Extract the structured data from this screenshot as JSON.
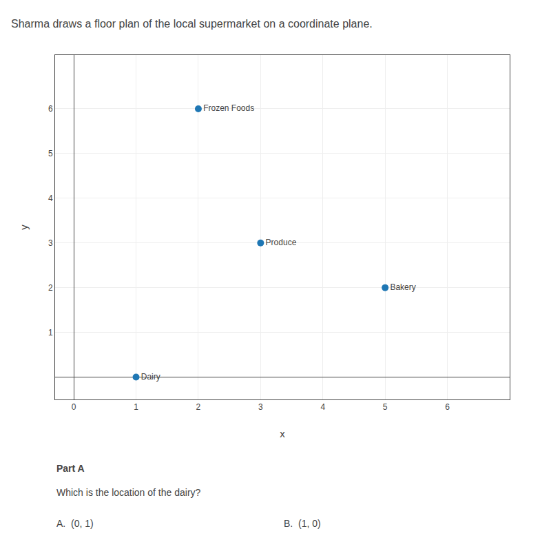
{
  "chart_data": {
    "type": "scatter",
    "title": "Sharma draws a floor plan of the local supermarket on a coordinate plane.",
    "x": [
      2,
      3,
      5,
      1
    ],
    "y": [
      6,
      3,
      2,
      0
    ],
    "labels": [
      "Frozen Foods",
      "Produce",
      "Bakery",
      "Dairy"
    ],
    "xlabel": "x",
    "ylabel": "y",
    "xlim": [
      -0.3,
      7.0
    ],
    "ylim": [
      -0.5,
      7.2
    ],
    "xticks": [
      0,
      1,
      2,
      3,
      4,
      5,
      6
    ],
    "yticks": [
      1,
      2,
      3,
      4,
      5,
      6
    ],
    "grid": true,
    "annotations": [
      "Part A",
      "Which is the location of the dairy?",
      "A.  (0, 1)",
      "B.  (1, 0)"
    ]
  }
}
